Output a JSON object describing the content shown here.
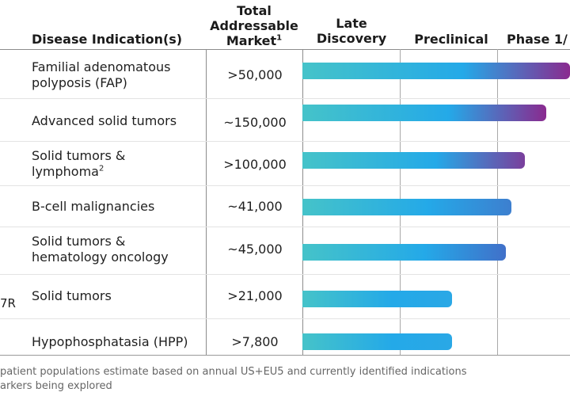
{
  "header": {
    "market_line1": "Total",
    "market_line2": "Addressable",
    "market_line3": "Market",
    "market_sup": "1",
    "disease": "Disease Indication(s)",
    "late_line1": "Late",
    "late_line2": "Discovery",
    "preclinical": "Preclinical",
    "phase1": "Phase 1/"
  },
  "side_label": "7R",
  "rows": [
    {
      "line1": "Familial adenomatous",
      "line2": "polyposis (FAP)",
      "sup": "",
      "market": ">50,000",
      "progress": 1.0,
      "end_color": "#8a2a8f"
    },
    {
      "line1": "Advanced solid tumors",
      "line2": "",
      "sup": "",
      "market": "~150,000",
      "progress": 0.91,
      "end_color": "#8a2a8f"
    },
    {
      "line1": "Solid tumors &",
      "line2": "lymphoma",
      "sup": "2",
      "market": ">100,000",
      "progress": 0.83,
      "end_color": "#7a3f9c"
    },
    {
      "line1": "B-cell malignancies",
      "line2": "",
      "sup": "",
      "market": "~41,000",
      "progress": 0.78,
      "end_color": "#3d7fcf"
    },
    {
      "line1": "Solid tumors &",
      "line2": "hematology oncology",
      "sup": "",
      "market": "~45,000",
      "progress": 0.76,
      "end_color": "#4170c9"
    },
    {
      "line1": "Solid tumors",
      "line2": "",
      "sup": "",
      "market": ">21,000",
      "progress": 0.56,
      "end_color": "#2aa8e6"
    },
    {
      "line1": "Hypophosphatasia (HPP)",
      "line2": "",
      "sup": "",
      "market": ">7,800",
      "progress": 0.56,
      "end_color": "#2aa8e6"
    }
  ],
  "footnotes": [
    "patient populations estimate based on annual US+EU5 and currently identified indications",
    "arkers being explored"
  ],
  "colors": {
    "bar_start": "#45c3c9",
    "bar_mid": "#24a9e8"
  }
}
